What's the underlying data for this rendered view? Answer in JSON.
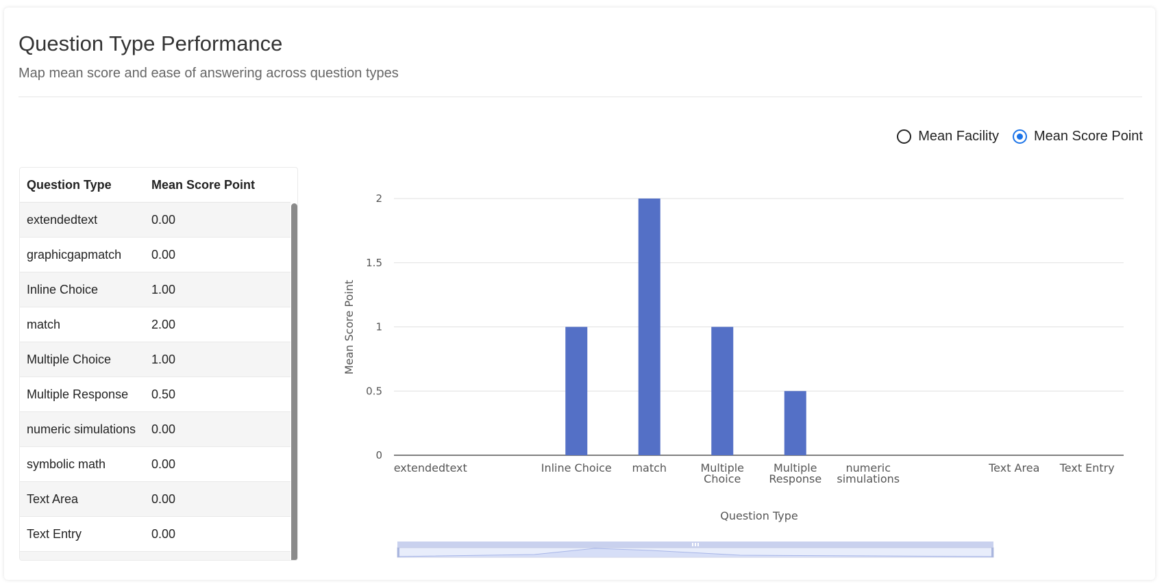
{
  "header": {
    "title": "Question Type Performance",
    "subtitle": "Map mean score and ease of answering across question types"
  },
  "toggle": {
    "options": [
      {
        "label": "Mean Facility",
        "checked": false
      },
      {
        "label": "Mean Score Point",
        "checked": true
      }
    ]
  },
  "table": {
    "headers": [
      "Question Type",
      "Mean Score Point"
    ],
    "rows": [
      [
        "extendedtext",
        "0.00"
      ],
      [
        "graphicgapmatch",
        "0.00"
      ],
      [
        "Inline Choice",
        "1.00"
      ],
      [
        "match",
        "2.00"
      ],
      [
        "Multiple Choice",
        "1.00"
      ],
      [
        "Multiple Response",
        "0.50"
      ],
      [
        "numeric simulations",
        "0.00"
      ],
      [
        "symbolic math",
        "0.00"
      ],
      [
        "Text Area",
        "0.00"
      ],
      [
        "Text Entry",
        "0.00"
      ]
    ]
  },
  "colors": {
    "bar": "#5470c6",
    "accent": "#1a73e8"
  },
  "chart_data": {
    "type": "bar",
    "categories": [
      "extendedtext",
      "graphicgapmatch",
      "Inline Choice",
      "match",
      "Multiple Choice",
      "Multiple Response",
      "numeric simulations",
      "symbolic math",
      "Text Area",
      "Text Entry"
    ],
    "category_labels": [
      [
        "extendedtext"
      ],
      [
        ""
      ],
      [
        "Inline Choice"
      ],
      [
        "match"
      ],
      [
        "Multiple",
        "Choice"
      ],
      [
        "Multiple",
        "Response"
      ],
      [
        "numeric",
        "simulations"
      ],
      [
        ""
      ],
      [
        "Text Area"
      ],
      [
        "Text Entry"
      ]
    ],
    "values": [
      0,
      0,
      1,
      2,
      1,
      0.5,
      0,
      0,
      0,
      0
    ],
    "xlabel": "Question Type",
    "ylabel": "Mean Score Point",
    "ylim": [
      0,
      2
    ],
    "yticks": [
      "0",
      "0.5",
      "1",
      "1.5",
      "2"
    ],
    "grid": true,
    "legend": "none"
  }
}
